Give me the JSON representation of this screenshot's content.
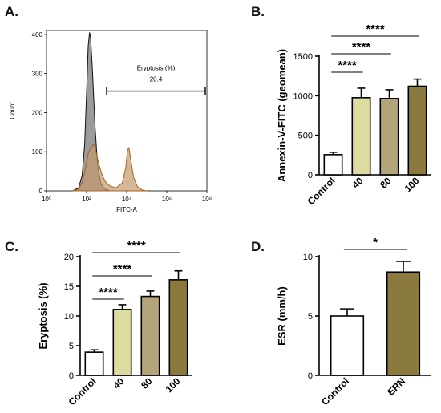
{
  "panels": {
    "a_letter": "A.",
    "b_letter": "B.",
    "c_letter": "C.",
    "d_letter": "D."
  },
  "chart_data": [
    {
      "panel": "A",
      "type": "area",
      "xlabel": "FITC-A",
      "ylabel": "Count",
      "x_scale": "log",
      "xlim": [
        1,
        100000000
      ],
      "ylim": [
        0,
        410
      ],
      "x_tick_labels": [
        "10⁰",
        "10²",
        "10⁴",
        "10⁶",
        "10⁸"
      ],
      "x_ticks": [
        1,
        100,
        10000,
        1000000,
        100000000
      ],
      "y_ticks": [
        0,
        100,
        200,
        300,
        400
      ],
      "gate": {
        "label": "Eryptosis (%)",
        "value": "20.4",
        "x_from": 1000,
        "x_to": 100000000
      },
      "series": [
        {
          "color": "#8a8a8a",
          "points": [
            [
              20,
              0
            ],
            [
              40,
              8
            ],
            [
              60,
              40
            ],
            [
              80,
              120
            ],
            [
              100,
              250
            ],
            [
              120,
              370
            ],
            [
              140,
              405
            ],
            [
              160,
              390
            ],
            [
              200,
              300
            ],
            [
              260,
              170
            ],
            [
              350,
              70
            ],
            [
              500,
              20
            ],
            [
              800,
              4
            ],
            [
              1500,
              0
            ]
          ]
        },
        {
          "color": "#c49a6c",
          "points": [
            [
              20,
              0
            ],
            [
              40,
              5
            ],
            [
              60,
              20
            ],
            [
              90,
              60
            ],
            [
              120,
              95
            ],
            [
              160,
              110
            ],
            [
              220,
              120
            ],
            [
              300,
              100
            ],
            [
              400,
              70
            ],
            [
              600,
              40
            ],
            [
              900,
              22
            ],
            [
              1500,
              12
            ],
            [
              3000,
              8
            ],
            [
              6000,
              20
            ],
            [
              9000,
              60
            ],
            [
              11000,
              105
            ],
            [
              13000,
              110
            ],
            [
              16000,
              80
            ],
            [
              22000,
              35
            ],
            [
              35000,
              10
            ],
            [
              60000,
              2
            ],
            [
              100000,
              0
            ]
          ]
        }
      ]
    },
    {
      "panel": "B",
      "type": "bar",
      "categories": [
        "Control",
        "40",
        "80",
        "100"
      ],
      "values": [
        255,
        975,
        965,
        1120
      ],
      "errors": [
        30,
        120,
        110,
        90
      ],
      "colors": [
        "#ffffff",
        "#dcdba0",
        "#b3a47a",
        "#8b7a3d"
      ],
      "ylabel": "Annexin-V-FITC (geomean)",
      "ylim": [
        0,
        1500
      ],
      "y_ticks": [
        0,
        500,
        1000,
        1500
      ],
      "significance": [
        {
          "from": 0,
          "to": 1,
          "label": "****"
        },
        {
          "from": 0,
          "to": 2,
          "label": "****"
        },
        {
          "from": 0,
          "to": 3,
          "label": "****"
        }
      ]
    },
    {
      "panel": "C",
      "type": "bar",
      "categories": [
        "Control",
        "40",
        "80",
        "100"
      ],
      "values": [
        3.9,
        11.1,
        13.3,
        16.1
      ],
      "errors": [
        0.4,
        0.8,
        0.9,
        1.5
      ],
      "colors": [
        "#ffffff",
        "#dcdba0",
        "#b3a47a",
        "#8b7a3d"
      ],
      "ylabel": "Eryptosis (%)",
      "ylim": [
        0,
        20
      ],
      "y_ticks": [
        0,
        5,
        10,
        15,
        20
      ],
      "significance": [
        {
          "from": 0,
          "to": 1,
          "label": "****"
        },
        {
          "from": 0,
          "to": 2,
          "label": "****"
        },
        {
          "from": 0,
          "to": 3,
          "label": "****"
        }
      ]
    },
    {
      "panel": "D",
      "type": "bar",
      "categories": [
        "Control",
        "ERN"
      ],
      "values": [
        5.0,
        8.7
      ],
      "errors": [
        0.6,
        0.9
      ],
      "colors": [
        "#ffffff",
        "#8b7a3d"
      ],
      "ylabel": "ESR (mm/h)",
      "ylim": [
        0,
        10
      ],
      "y_ticks": [
        0,
        5,
        10
      ],
      "significance": [
        {
          "from": 0,
          "to": 1,
          "label": "*"
        }
      ]
    }
  ]
}
